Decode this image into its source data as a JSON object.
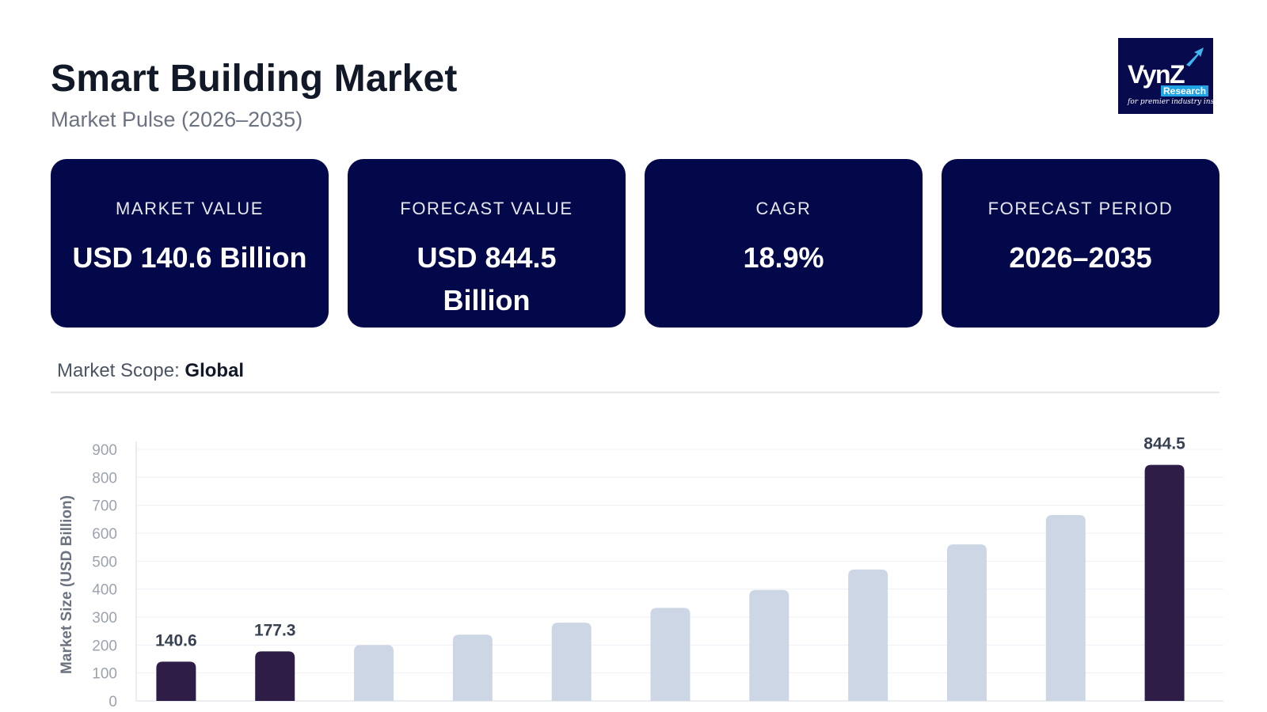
{
  "header": {
    "title": "Smart Building Market",
    "subtitle": "Market Pulse (2026–2035)"
  },
  "logo": {
    "word": "VynZ",
    "sub": "Research",
    "tagline": "for premier industry insights",
    "icon": "arrow-logo-icon"
  },
  "cards": [
    {
      "label": "MARKET VALUE",
      "value": "USD 140.6 Billion"
    },
    {
      "label": "FORECAST VALUE",
      "value": "USD 844.5 Billion"
    },
    {
      "label": "CAGR",
      "value": "18.9%"
    },
    {
      "label": "FORECAST PERIOD",
      "value": "2026–2035"
    }
  ],
  "scope": {
    "label": "Market Scope:",
    "value": "Global"
  },
  "colors": {
    "card_bg": "#03084a",
    "highlight_bar": "#2e1e47",
    "muted_bar": "#cdd6e4"
  },
  "chart_data": {
    "type": "bar",
    "ylabel": "Market Size (USD Billion)",
    "ylim": [
      0,
      900
    ],
    "yticks": [
      0,
      100,
      200,
      300,
      400,
      500,
      600,
      700,
      800,
      900
    ],
    "grid": true,
    "values": [
      140.6,
      177.3,
      200,
      237,
      280,
      333,
      397,
      470,
      560,
      665,
      844.5
    ],
    "highlighted": [
      true,
      true,
      false,
      false,
      false,
      false,
      false,
      false,
      false,
      false,
      true
    ],
    "data_labels": [
      "140.6",
      "177.3",
      "",
      "",
      "",
      "",
      "",
      "",
      "",
      "",
      "844.5"
    ]
  }
}
